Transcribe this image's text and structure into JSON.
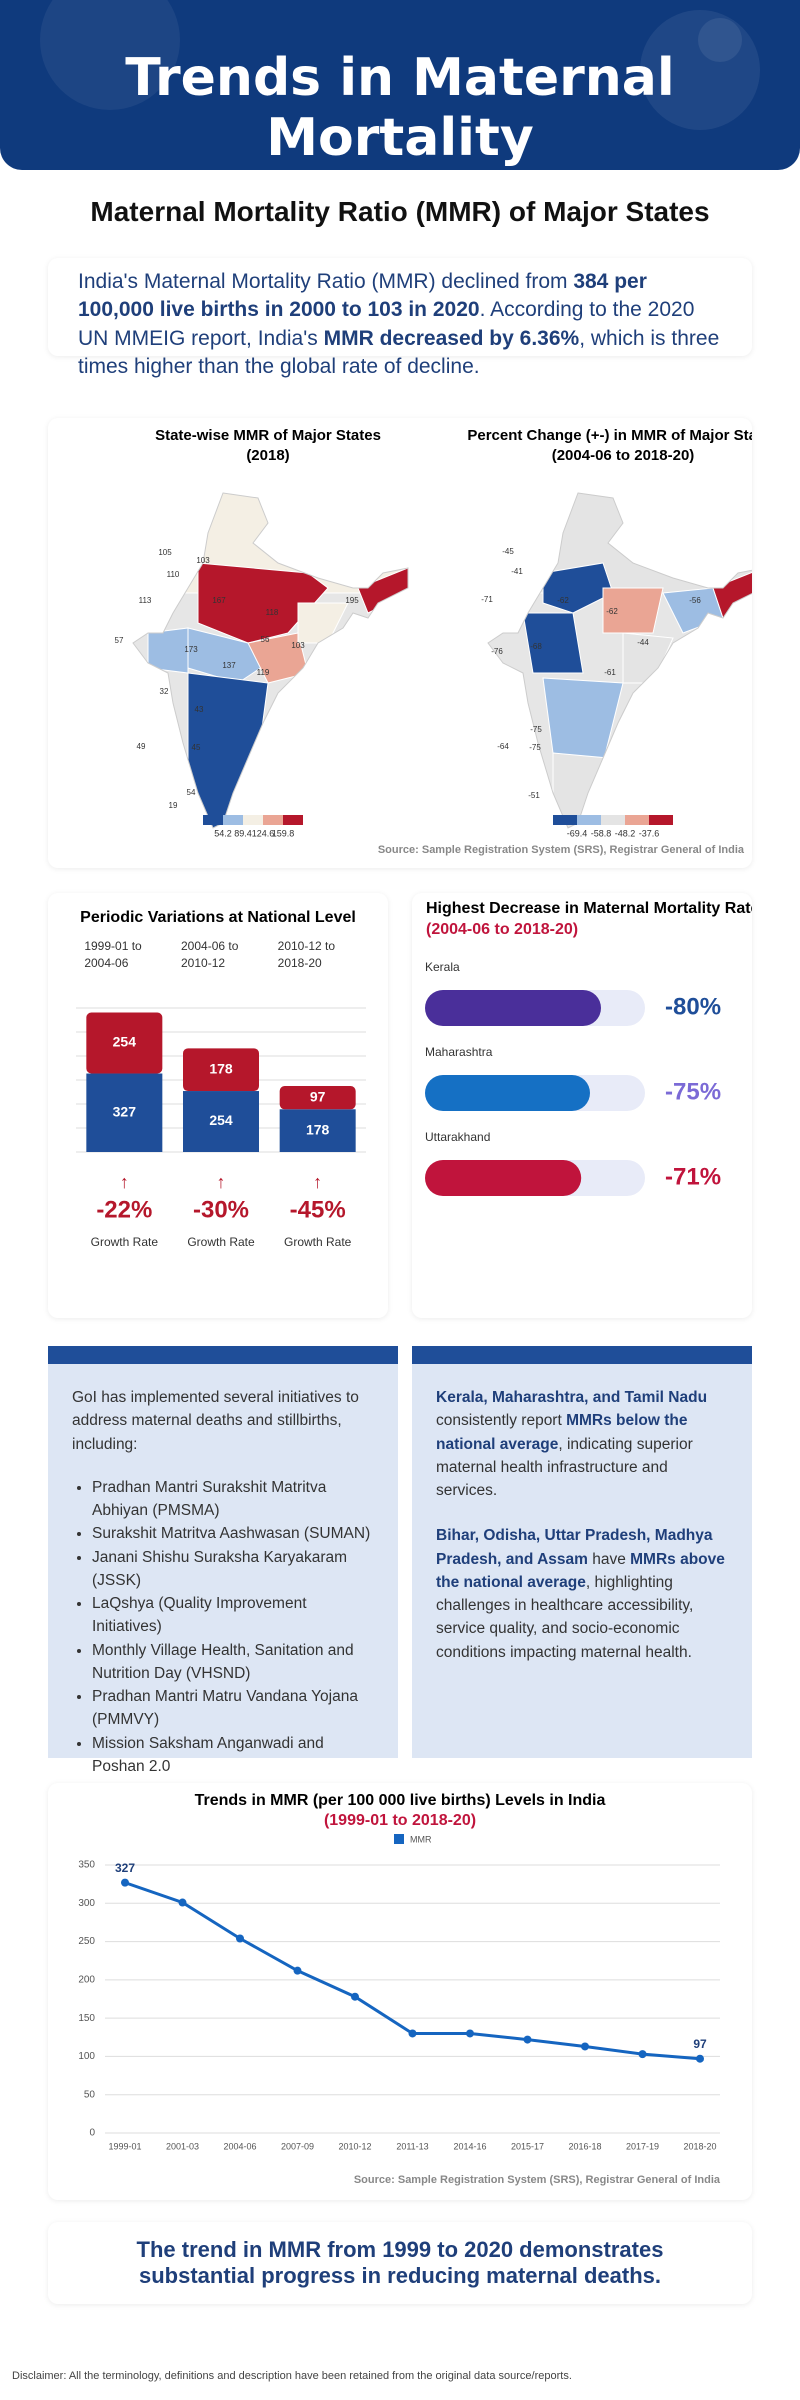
{
  "header": {
    "title": "Trends in Maternal Mortality"
  },
  "section_title": "Maternal Mortality Ratio (MMR) of Major States",
  "intro": [
    {
      "text": "India's Maternal Mortality Ratio (MMR) declined from ",
      "bold": false
    },
    {
      "text": "384 per 100,000 live births in 2000 to 103 in 2020",
      "bold": true
    },
    {
      "text": ". According to the 2020 UN MMEIG report, India's ",
      "bold": false
    },
    {
      "text": "MMR decreased by 6.36%",
      "bold": true
    },
    {
      "text": ", which is three times higher than the global rate of decline.",
      "bold": false
    }
  ],
  "maps": [
    {
      "title": "State-wise MMR of Major States",
      "subtitle": "(2018)",
      "labels": [
        105,
        103,
        110,
        113,
        167,
        118,
        195,
        57,
        173,
        56,
        103,
        137,
        119,
        32,
        43,
        49,
        45,
        54,
        19
      ],
      "legend": {
        "colors": [
          "#1f4e99",
          "#9dbde3",
          "#f4efe4",
          "#eaa594",
          "#b5172b"
        ],
        "ticks": [
          54.2,
          89.4,
          124.6,
          159.8
        ]
      }
    },
    {
      "title": "Percent Change (+-) in MMR of Major States",
      "subtitle": "(2004-06 to 2018-20)",
      "labels": [
        -45,
        -41,
        -71,
        -62,
        -62,
        -56,
        -76,
        -68,
        -44,
        -61,
        -75,
        -64,
        -75,
        -51
      ],
      "legend": {
        "colors": [
          "#1f4e99",
          "#9dbde3",
          "#e4e4e4",
          "#eaa594",
          "#b5172b"
        ],
        "ticks": [
          -69.4,
          -58.8,
          -48.2,
          -37.6
        ]
      }
    }
  ],
  "maps_source": "Source: Sample Registration System (SRS), Registrar General of India",
  "periodic": {
    "type": "bar",
    "stacked": true,
    "title": "Periodic Variations at National Level",
    "categories": [
      "1999-01 to 2004-06",
      "2004-06 to 2010-12",
      "2010-12 to 2018-20"
    ],
    "series": [
      {
        "color": "#1f4e99",
        "values": [
          327,
          254,
          178
        ]
      },
      {
        "color": "#b5172b",
        "values": [
          254,
          178,
          97
        ]
      }
    ],
    "ylim": [
      0,
      600
    ],
    "yticks": [
      0,
      100,
      200,
      300,
      400,
      500,
      600
    ],
    "grid": true,
    "growth_rates": [
      "-22%",
      "-30%",
      "-45%"
    ],
    "growth_label": "Growth Rate"
  },
  "decrease": {
    "type": "progress",
    "title": "Highest Decrease in Maternal Mortality Rate",
    "subtitle": "(2004-06 to 2018-20)",
    "categories": [
      "Kerala",
      "Maharashtra",
      "Uttarakhand"
    ],
    "values": [
      -80,
      -75,
      -71
    ],
    "value_labels": [
      "-80%",
      "-75%",
      "-71%"
    ],
    "colors": [
      "#4a2f9a",
      "#1570c4",
      "#c0143c"
    ],
    "label_colors": [
      "#1f4e99",
      "#7b6ad6",
      "#c0143c"
    ],
    "xlim": [
      0,
      -100
    ]
  },
  "initiatives": {
    "intro": "GoI has implemented several initiatives to address maternal deaths and stillbirths, including:",
    "items": [
      "Pradhan Mantri Surakshit Matritva Abhiyan (PMSMA)",
      "Surakshit Matritva Aashwasan (SUMAN)",
      "Janani Shishu Suraksha Karyakaram (JSSK)",
      "LaQshya (Quality Improvement Initiatives)",
      "Monthly Village Health, Sanitation and Nutrition Day (VHSND)",
      "Pradhan Mantri Matru Vandana Yojana (PMMVY)",
      "Mission Saksham Anganwadi and Poshan 2.0"
    ]
  },
  "states_note": [
    [
      {
        "text": "Kerala, Maharashtra, and Tamil Nadu",
        "bold": true
      },
      {
        "text": " consistently report ",
        "bold": false
      },
      {
        "text": "MMRs below the national average",
        "bold": true
      },
      {
        "text": ", indicating superior maternal health infrastructure and services.",
        "bold": false
      }
    ],
    [
      {
        "text": "Bihar, Odisha, Uttar Pradesh, Madhya Pradesh, and Assam",
        "bold": true
      },
      {
        "text": " have ",
        "bold": false
      },
      {
        "text": "MMRs above the national average",
        "bold": true
      },
      {
        "text": ", highlighting challenges in healthcare accessibility, service quality, and socio-economic conditions impacting maternal health.",
        "bold": false
      }
    ]
  ],
  "trend": {
    "type": "line",
    "title": "Trends in MMR (per 100 000 live births) Levels in India",
    "subtitle": "(1999-01 to 2018-20)",
    "categories": [
      "1999-01",
      "2001-03",
      "2004-06",
      "2007-09",
      "2010-12",
      "2011-13",
      "2014-16",
      "2015-17",
      "2016-18",
      "2017-19",
      "2018-20"
    ],
    "series": [
      {
        "name": "MMR",
        "color": "#1565c0",
        "values": [
          327,
          301,
          254,
          212,
          178,
          130,
          130,
          122,
          113,
          103,
          97
        ]
      }
    ],
    "ylim": [
      0,
      350
    ],
    "yticks": [
      0,
      50,
      100,
      150,
      200,
      250,
      300,
      350
    ],
    "grid": true,
    "source": "Source: Sample Registration System (SRS), Registrar General of India"
  },
  "conclusion": "The trend in MMR from 1999 to 2020 demonstrates substantial progress in reducing maternal deaths.",
  "disclaimer": "Disclaimer: All the terminology, definitions and description have been retained from the original data source/reports."
}
